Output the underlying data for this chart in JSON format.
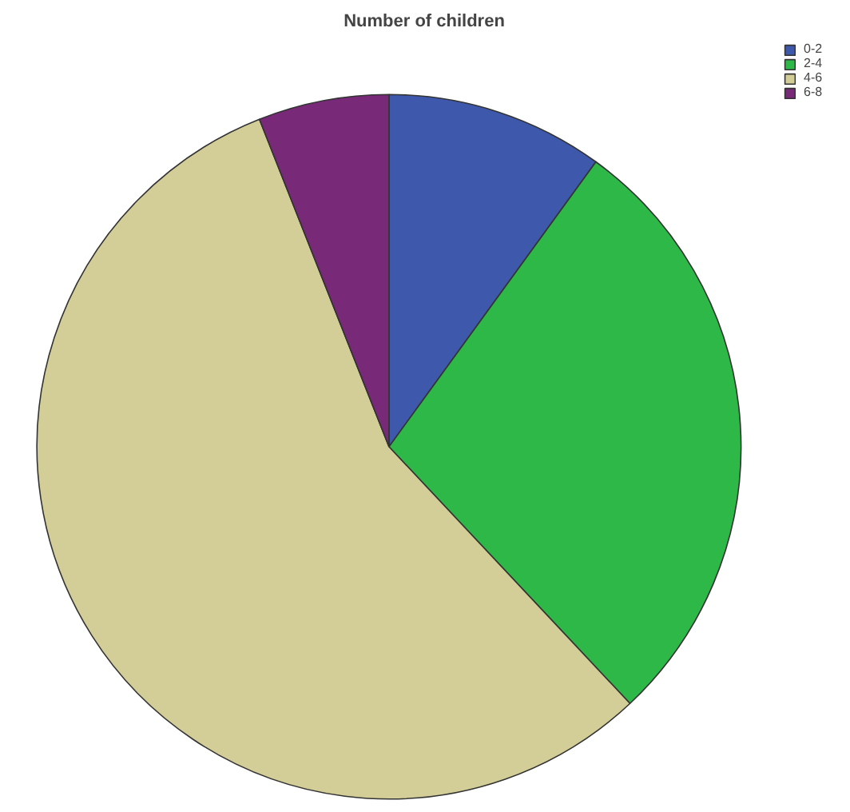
{
  "chart_data": {
    "type": "pie",
    "title": "Number of children",
    "categories": [
      "0-2",
      "2-4",
      "4-6",
      "6-8"
    ],
    "values": [
      10,
      28,
      56,
      6
    ],
    "colors": [
      "#3e58ac",
      "#2eb848",
      "#d3ce97",
      "#782a79"
    ],
    "legend": "top right"
  }
}
